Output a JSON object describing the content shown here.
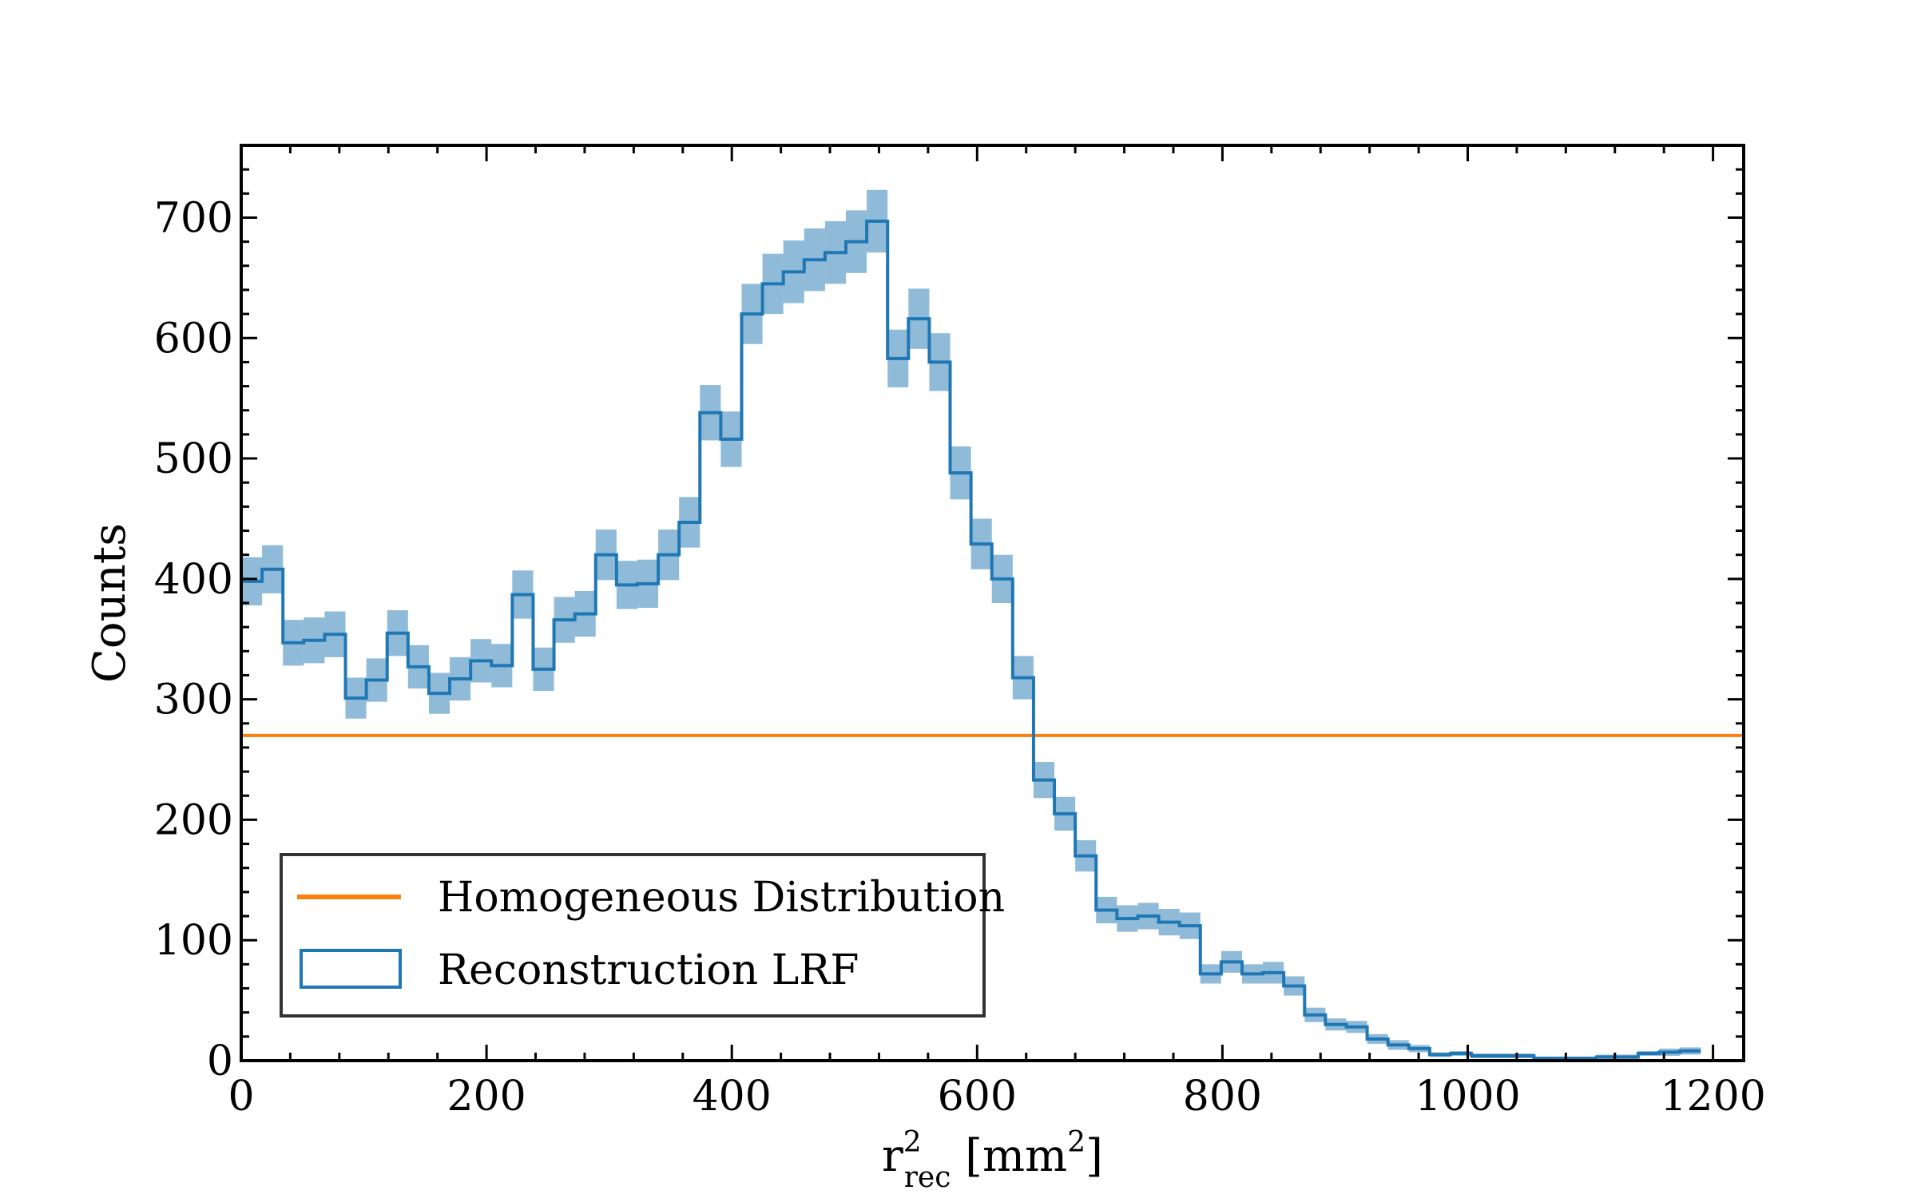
{
  "chart_data": {
    "type": "histogram",
    "xlabel": {
      "main": "r",
      "sup": "2",
      "sub": "rec",
      "unit_pre": " [mm",
      "unit_sup": "2",
      "unit_post": "]"
    },
    "ylabel": "Counts",
    "xlim": [
      0,
      1225
    ],
    "ylim": [
      0,
      760
    ],
    "xticks": [
      0,
      200,
      400,
      600,
      800,
      1000,
      1200
    ],
    "xtick_labels": [
      "0",
      "200",
      "400",
      "600",
      "800",
      "1000",
      "1200"
    ],
    "yticks": [
      0,
      100,
      200,
      300,
      400,
      500,
      600,
      700
    ],
    "ytick_labels": [
      "0",
      "100",
      "200",
      "300",
      "400",
      "500",
      "600",
      "700"
    ],
    "grid": false,
    "legend_placement": "lower-left",
    "bin_width": 17,
    "bin_start": 0,
    "series": [
      {
        "name": "Homogeneous Distribution",
        "style": "hline",
        "value": 270,
        "color": "#ff7f0e"
      },
      {
        "name": "Reconstruction LRF",
        "style": "step-histogram",
        "color": "#1f77b4",
        "band_color": "#1f77b4",
        "values": [
          398,
          408,
          347,
          349,
          354,
          301,
          316,
          355,
          327,
          305,
          317,
          332,
          328,
          387,
          325,
          366,
          371,
          420,
          395,
          396,
          420,
          447,
          538,
          516,
          620,
          645,
          655,
          665,
          671,
          680,
          697,
          583,
          616,
          580,
          488,
          429,
          400,
          318,
          233,
          205,
          170,
          125,
          118,
          120,
          115,
          112,
          72,
          82,
          72,
          73,
          62,
          38,
          30,
          28,
          18,
          13,
          10,
          5,
          6,
          4,
          4,
          4,
          2,
          2,
          2,
          3,
          3,
          6,
          7,
          8
        ],
        "errors": [
          20,
          20,
          19,
          19,
          19,
          17,
          18,
          19,
          18,
          17,
          18,
          18,
          18,
          20,
          18,
          19,
          19,
          21,
          20,
          20,
          21,
          21,
          23,
          23,
          25,
          25,
          26,
          26,
          26,
          26,
          26,
          24,
          25,
          24,
          22,
          21,
          20,
          18,
          15,
          14,
          13,
          11,
          11,
          11,
          11,
          11,
          8,
          9,
          8,
          9,
          8,
          6,
          5,
          5,
          4,
          4,
          3,
          2,
          2,
          2,
          2,
          2,
          1,
          1,
          1,
          2,
          2,
          2,
          3,
          3
        ]
      }
    ]
  }
}
